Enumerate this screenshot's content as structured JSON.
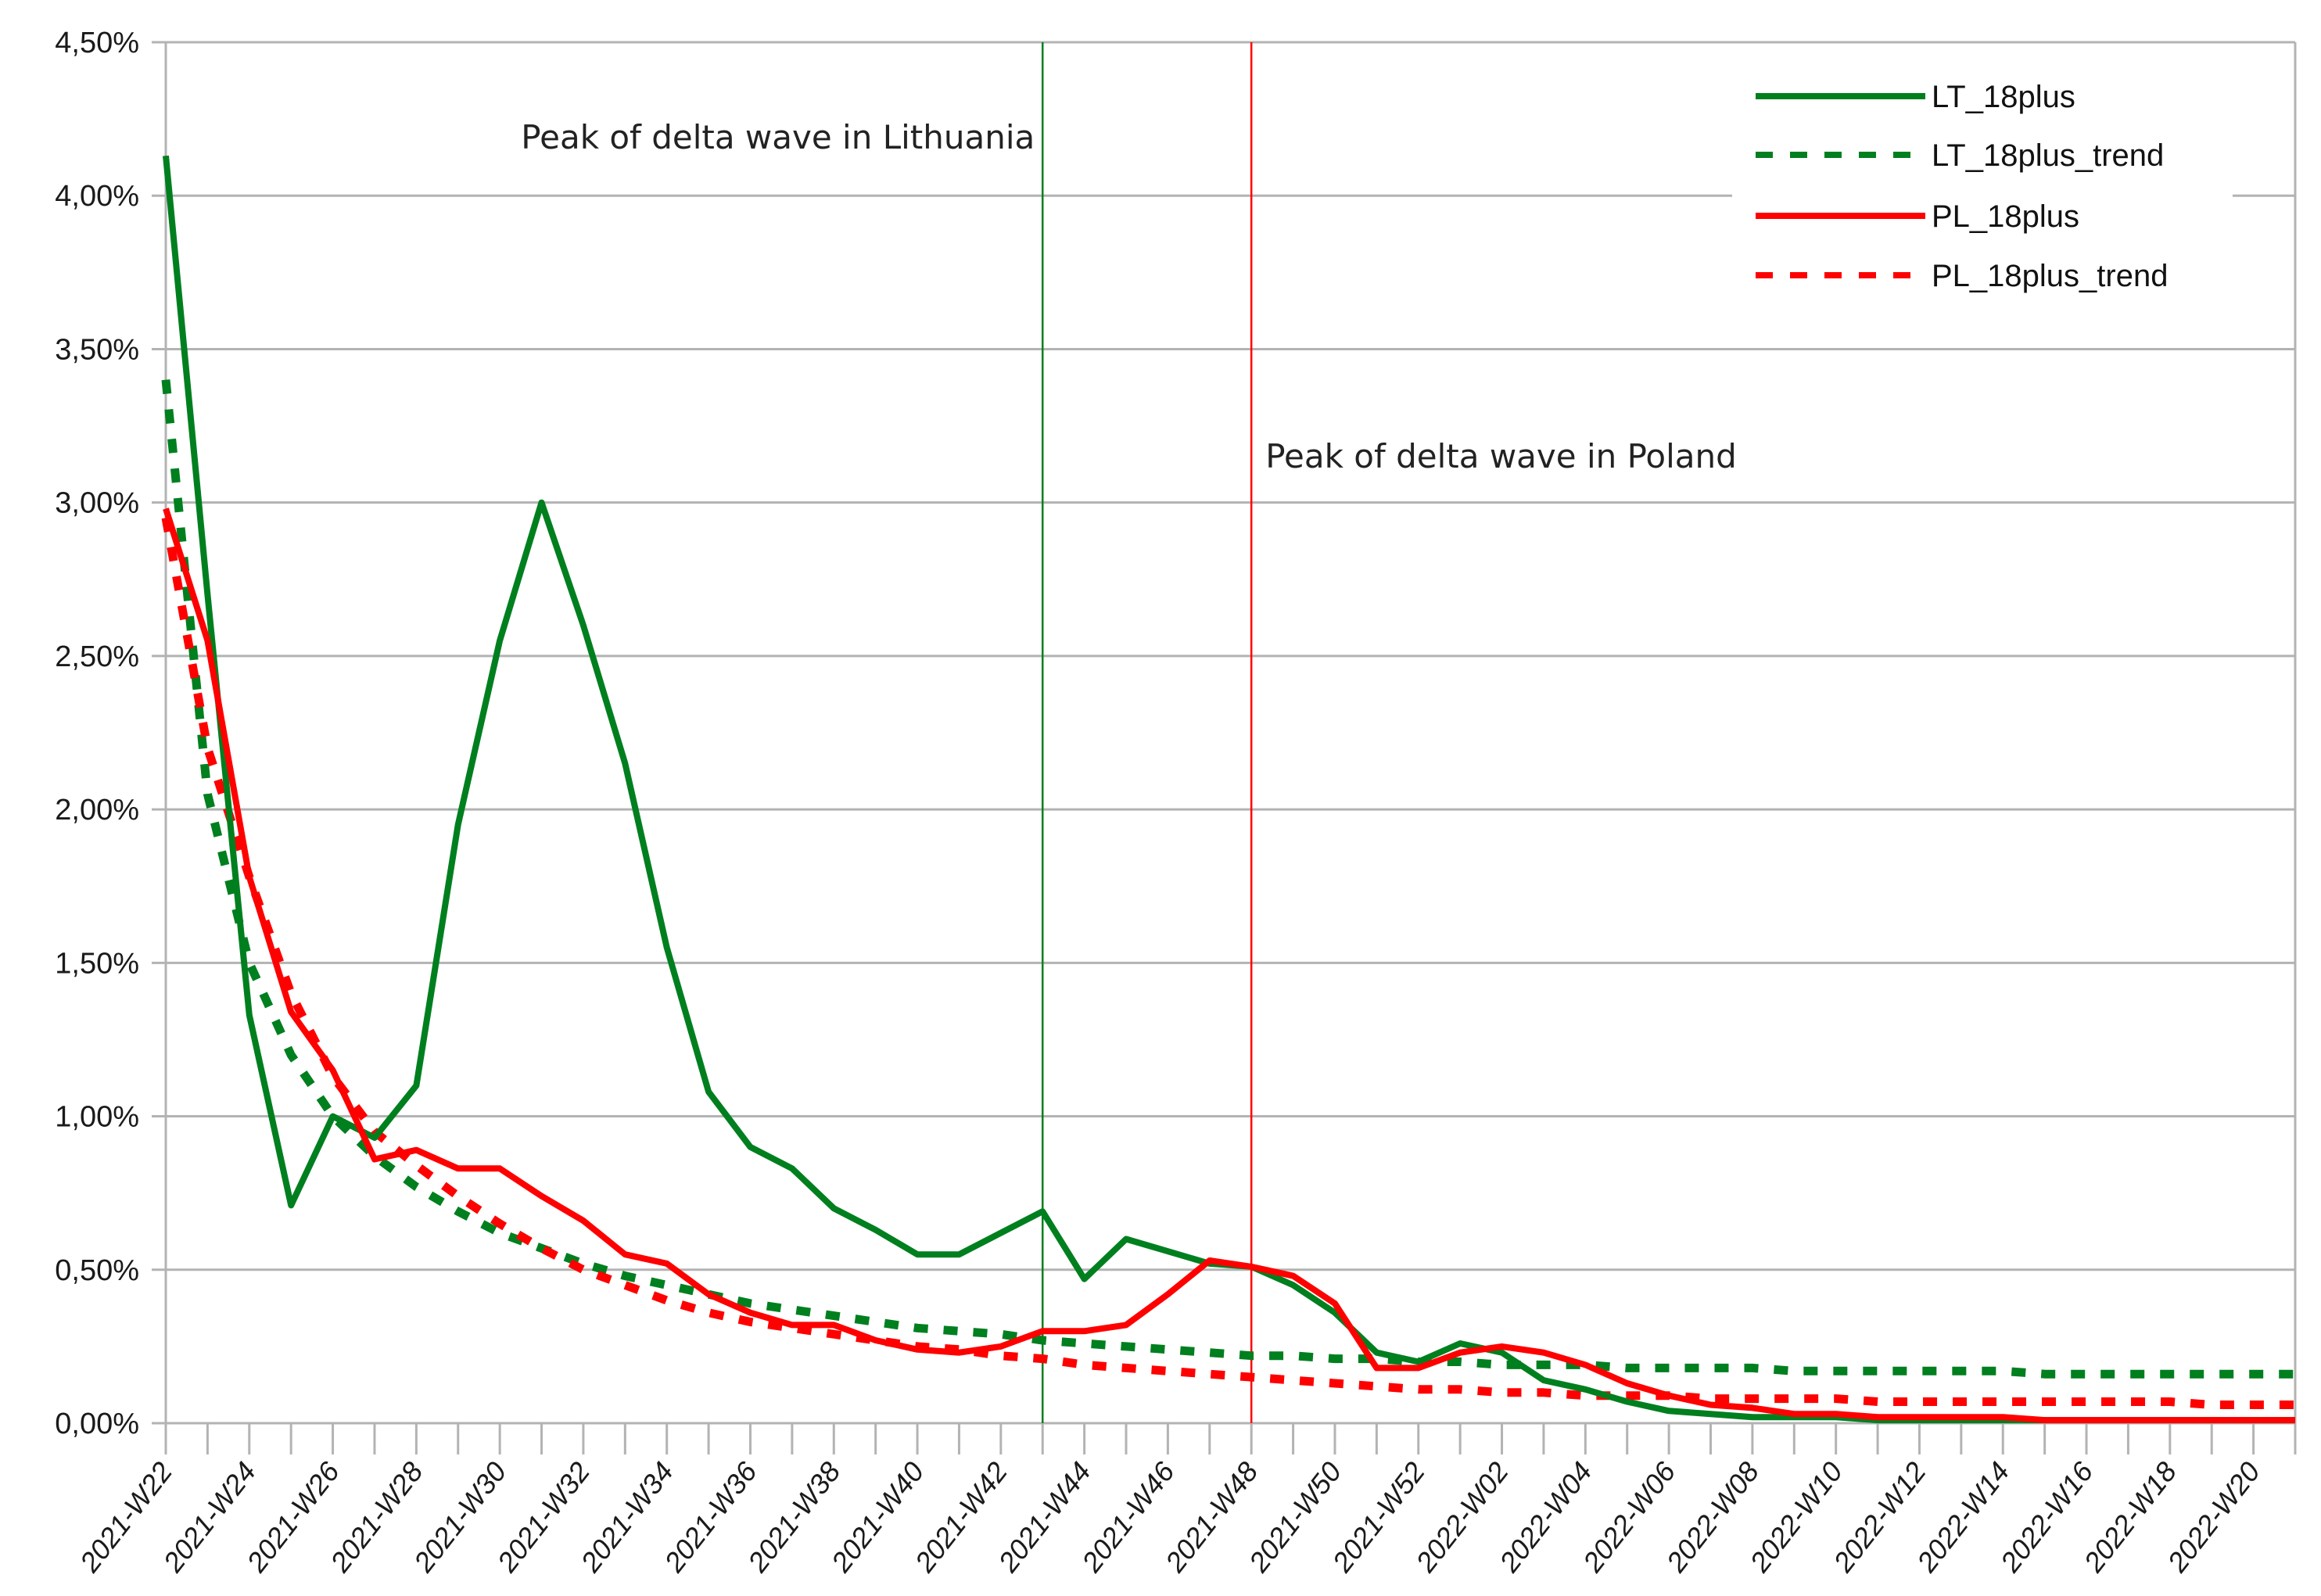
{
  "chart_data": {
    "type": "line",
    "title": "",
    "xlabel": "",
    "ylabel": "",
    "ylim": [
      0,
      4.5
    ],
    "y_unit": "%",
    "grid": true,
    "legend_position": "top-right",
    "y_ticks": [
      "0,00%",
      "0,50%",
      "1,00%",
      "1,50%",
      "2,00%",
      "2,50%",
      "3,00%",
      "3,50%",
      "4,00%",
      "4,50%"
    ],
    "x_tick_labels": [
      "2021-W22",
      "2021-W24",
      "2021-W26",
      "2021-W28",
      "2021-W30",
      "2021-W32",
      "2021-W34",
      "2021-W36",
      "2021-W38",
      "2021-W40",
      "2021-W42",
      "2021-W44",
      "2021-W46",
      "2021-W48",
      "2021-W50",
      "2021-W52",
      "2022-W02",
      "2022-W04",
      "2022-W06",
      "2022-W08",
      "2022-W10",
      "2022-W12",
      "2022-W14",
      "2022-W16",
      "2022-W18",
      "2022-W20"
    ],
    "x": [
      "2021-W22",
      "2021-W23",
      "2021-W24",
      "2021-W25",
      "2021-W26",
      "2021-W27",
      "2021-W28",
      "2021-W29",
      "2021-W30",
      "2021-W31",
      "2021-W32",
      "2021-W33",
      "2021-W34",
      "2021-W35",
      "2021-W36",
      "2021-W37",
      "2021-W38",
      "2021-W39",
      "2021-W40",
      "2021-W41",
      "2021-W42",
      "2021-W43",
      "2021-W44",
      "2021-W45",
      "2021-W46",
      "2021-W47",
      "2021-W48",
      "2021-W49",
      "2021-W50",
      "2021-W51",
      "2021-W52",
      "2022-W01",
      "2022-W02",
      "2022-W03",
      "2022-W04",
      "2022-W05",
      "2022-W06",
      "2022-W07",
      "2022-W08",
      "2022-W09",
      "2022-W10",
      "2022-W11",
      "2022-W12",
      "2022-W13",
      "2022-W14",
      "2022-W15",
      "2022-W16",
      "2022-W17",
      "2022-W18",
      "2022-W19",
      "2022-W20",
      "2022-W21"
    ],
    "series": [
      {
        "name": "LT_18plus",
        "color": "#007f1f",
        "style": "solid",
        "values": [
          4.13,
          2.7,
          1.33,
          0.71,
          1.0,
          0.93,
          1.1,
          1.95,
          2.55,
          3.0,
          2.6,
          2.15,
          1.55,
          1.08,
          0.9,
          0.83,
          0.7,
          0.63,
          0.55,
          0.55,
          0.62,
          0.69,
          0.47,
          0.6,
          0.56,
          0.52,
          0.51,
          0.45,
          0.36,
          0.23,
          0.2,
          0.26,
          0.23,
          0.14,
          0.11,
          0.07,
          0.04,
          0.03,
          0.02,
          0.02,
          0.02,
          0.01,
          0.01,
          0.01,
          0.01,
          0.01,
          0.01,
          0.01,
          0.01,
          0.01,
          0.01,
          0.01
        ]
      },
      {
        "name": "LT_18plus_trend",
        "color": "#007f1f",
        "style": "dotted",
        "values": [
          3.4,
          2.05,
          1.5,
          1.2,
          1.0,
          0.87,
          0.77,
          0.69,
          0.62,
          0.57,
          0.52,
          0.48,
          0.45,
          0.42,
          0.39,
          0.37,
          0.35,
          0.33,
          0.31,
          0.3,
          0.29,
          0.27,
          0.26,
          0.25,
          0.24,
          0.23,
          0.22,
          0.22,
          0.21,
          0.21,
          0.2,
          0.2,
          0.19,
          0.19,
          0.19,
          0.18,
          0.18,
          0.18,
          0.18,
          0.17,
          0.17,
          0.17,
          0.17,
          0.17,
          0.17,
          0.16,
          0.16,
          0.16,
          0.16,
          0.16,
          0.16,
          0.16
        ]
      },
      {
        "name": "PL_18plus",
        "color": "#ff0000",
        "style": "solid",
        "values": [
          2.98,
          2.55,
          1.78,
          1.34,
          1.15,
          0.86,
          0.89,
          0.83,
          0.83,
          0.74,
          0.66,
          0.55,
          0.52,
          0.42,
          0.36,
          0.32,
          0.32,
          0.27,
          0.24,
          0.23,
          0.25,
          0.3,
          0.3,
          0.32,
          0.42,
          0.53,
          0.51,
          0.48,
          0.39,
          0.18,
          0.18,
          0.23,
          0.25,
          0.23,
          0.19,
          0.13,
          0.09,
          0.06,
          0.05,
          0.03,
          0.03,
          0.02,
          0.02,
          0.02,
          0.02,
          0.01,
          0.01,
          0.01,
          0.01,
          0.01,
          0.01,
          0.01
        ]
      },
      {
        "name": "PL_18plus_trend",
        "color": "#ff0000",
        "style": "dotted",
        "values": [
          2.95,
          2.2,
          1.78,
          1.4,
          1.13,
          0.95,
          0.84,
          0.74,
          0.65,
          0.57,
          0.5,
          0.45,
          0.4,
          0.36,
          0.33,
          0.31,
          0.29,
          0.27,
          0.25,
          0.24,
          0.22,
          0.21,
          0.19,
          0.18,
          0.17,
          0.16,
          0.15,
          0.14,
          0.13,
          0.12,
          0.11,
          0.11,
          0.1,
          0.1,
          0.09,
          0.09,
          0.09,
          0.08,
          0.08,
          0.08,
          0.08,
          0.07,
          0.07,
          0.07,
          0.07,
          0.07,
          0.07,
          0.07,
          0.07,
          0.06,
          0.06,
          0.06
        ]
      }
    ],
    "annotations": [
      {
        "text": "Peak of delta wave in Lithuania",
        "x": "2021-W43",
        "line_color": "#007f1f"
      },
      {
        "text": "Peak of delta wave in Poland",
        "x": "2021-W48",
        "line_color": "#ff0000"
      }
    ]
  },
  "legend": {
    "items": [
      {
        "label": "LT_18plus"
      },
      {
        "label": "LT_18plus_trend"
      },
      {
        "label": "PL_18plus"
      },
      {
        "label": "PL_18plus_trend"
      }
    ]
  },
  "annotations": {
    "lt_peak": "Peak of delta wave in Lithuania",
    "pl_peak": "Peak of delta wave in Poland"
  }
}
